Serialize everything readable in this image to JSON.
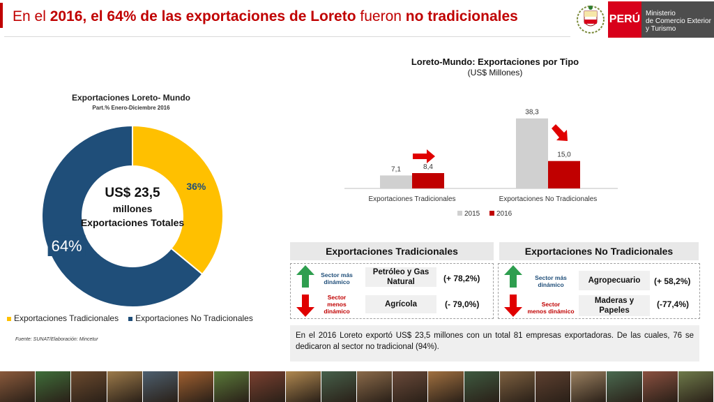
{
  "header": {
    "title_parts": [
      {
        "text": "En el ",
        "bold": false
      },
      {
        "text": "2016, el 64% de las exportaciones de Loreto",
        "bold": true
      },
      {
        "text": " fueron ",
        "bold": false
      },
      {
        "text": "no tradicionales",
        "bold": true
      }
    ],
    "logo_peru": "PERÚ",
    "ministry_lines": [
      "Ministerio",
      "de Comercio Exterior",
      "y Turismo"
    ]
  },
  "chart_data": [
    {
      "type": "pie",
      "title": "Exportaciones Loreto- Mundo",
      "subtitle": "Part.% Enero-Diciembre 2016",
      "categories": [
        "Exportaciones Tradicionales",
        "Exportaciones No Tradicionales"
      ],
      "values": [
        36,
        64
      ],
      "value_labels": [
        "36%",
        "64%"
      ],
      "colors": [
        "#ffc000",
        "#1f4e79"
      ],
      "center_text": [
        "US$ 23,5",
        "millones",
        "Exportaciones Totales"
      ],
      "legend": "bottom"
    },
    {
      "type": "bar",
      "title": "Loreto-Mundo: Exportaciones por Tipo",
      "subtitle": "(US$ Millones)",
      "categories": [
        "Exportaciones Tradicionales",
        "Exportaciones No Tradicionales"
      ],
      "series": [
        {
          "name": "2015",
          "values": [
            7.1,
            38.3
          ],
          "labels": [
            "7,1",
            "38,3"
          ],
          "color": "#d0d0d0"
        },
        {
          "name": "2016",
          "values": [
            8.4,
            15.0
          ],
          "labels": [
            "8,4",
            "15,0"
          ],
          "color": "#c00000"
        }
      ],
      "ylim": [
        0,
        42
      ],
      "grid": false,
      "legend": "bottom"
    }
  ],
  "source": "Fuente: SUNAT/Elaboración: Mincetur",
  "panels": [
    {
      "title": "Exportaciones Tradicionales",
      "rows": [
        {
          "label": "Sector más dinámico",
          "label_lines": [
            "Sector más",
            "dinámico"
          ],
          "trend": "up",
          "sector": "Petróleo y Gas Natural",
          "sector_lines": [
            "Petróleo y Gas",
            "Natural"
          ],
          "change": "(+ 78,2%)"
        },
        {
          "label": "Sector menos dinámico",
          "label_lines": [
            "Sector",
            "menos",
            "dinámico"
          ],
          "trend": "down",
          "sector": "Agrícola",
          "sector_lines": [
            "Agrícola"
          ],
          "change": "(- 79,0%)"
        }
      ]
    },
    {
      "title": "Exportaciones No Tradicionales",
      "rows": [
        {
          "label": "Sector más dinámico",
          "label_lines": [
            "Sector más",
            "dinámico"
          ],
          "trend": "up",
          "sector": "Agropecuario",
          "sector_lines": [
            "Agropecuario"
          ],
          "change": "(+ 58,2%)"
        },
        {
          "label": "Sector menos dinámico",
          "label_lines": [
            "Sector",
            "menos dinámico"
          ],
          "trend": "down",
          "sector": "Maderas y Papeles",
          "sector_lines": [
            "Maderas y",
            "Papeles"
          ],
          "change": "(-77,4%)"
        }
      ]
    }
  ],
  "note": "En el 2016 Loreto exportó US$ 23,5 millones con un total 81 empresas exportadoras. De las cuales, 76 se dedicaron al sector no tradicional (94%).",
  "colors": {
    "accent": "#c00000",
    "up": "#2e9e4f",
    "down": "#e00000",
    "traditional": "#ffc000",
    "non_traditional": "#1f4e79"
  }
}
